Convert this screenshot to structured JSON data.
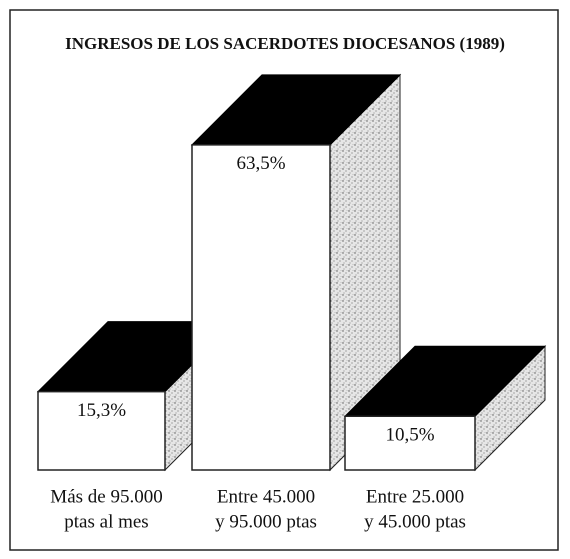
{
  "chart_data": {
    "type": "bar3d",
    "title": "INGRESOS DE LOS SACERDOTES DIOCESANOS (1989)",
    "categories": [
      [
        "Más de 95.000",
        "ptas al mes"
      ],
      [
        "Entre 45.000",
        "y 95.000 ptas"
      ],
      [
        "Entre 25.000",
        "y 45.000 ptas"
      ]
    ],
    "values": [
      15.3,
      63.5,
      10.5
    ],
    "value_labels": [
      "15,3%",
      "63,5%",
      "10,5%"
    ],
    "color": "#ffffff",
    "top_color": "#000000",
    "side_color": "#d8d8d8"
  }
}
